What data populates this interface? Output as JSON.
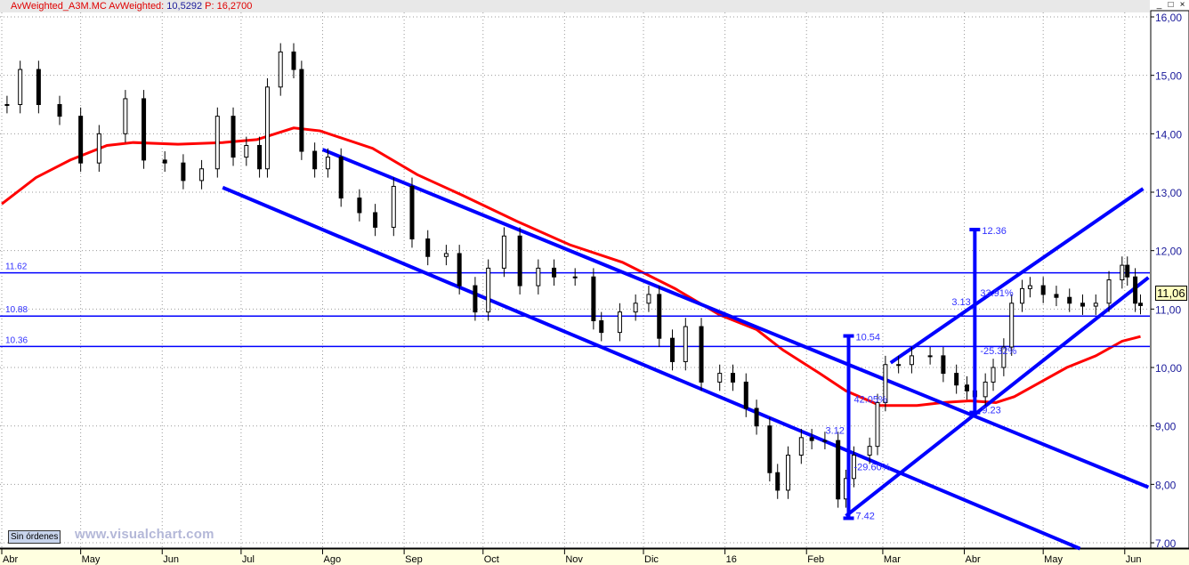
{
  "header": {
    "symbol_label": "AvWeighted_A3M.MC",
    "indicator_label": "AvWeighted:",
    "indicator_value": "10,5292",
    "price_label": "P:",
    "price_value": "16,2700"
  },
  "window_buttons": [
    "_",
    "□",
    "×"
  ],
  "orders_button": "Sin órdenes",
  "watermark": "www.visualchart.com",
  "last_price_badge": "11,06",
  "colors": {
    "price_line": "#0000ff",
    "moving_average": "#ff0000",
    "candle_up": "#ffffff",
    "candle_down": "#000000",
    "axis_strip": "#ffffe0"
  },
  "chart_data": {
    "type": "candlestick",
    "title": "",
    "ylim": [
      7,
      16
    ],
    "y_ticks": [
      "7,00",
      "8,00",
      "9,00",
      "10,00",
      "11,00",
      "12,00",
      "13,00",
      "14,00",
      "15,00",
      "16,00"
    ],
    "x_ticks": [
      {
        "label": "Abr",
        "date": "2015-04-01"
      },
      {
        "label": "May",
        "date": "2015-05-01"
      },
      {
        "label": "Jun",
        "date": "2015-06-01"
      },
      {
        "label": "Jul",
        "date": "2015-07-01"
      },
      {
        "label": "Ago",
        "date": "2015-08-01"
      },
      {
        "label": "Sep",
        "date": "2015-09-01"
      },
      {
        "label": "Oct",
        "date": "2015-10-01"
      },
      {
        "label": "Nov",
        "date": "2015-11-01"
      },
      {
        "label": "Dic",
        "date": "2015-12-01"
      },
      {
        "label": "16",
        "date": "2016-01-01"
      },
      {
        "label": "Feb",
        "date": "2016-02-01"
      },
      {
        "label": "Mar",
        "date": "2016-03-01"
      },
      {
        "label": "Abr",
        "date": "2016-04-01"
      },
      {
        "label": "May",
        "date": "2016-05-01"
      },
      {
        "label": "Jun",
        "date": "2016-06-01"
      }
    ],
    "grid": true,
    "price_closes": [
      [
        "2015-04-03",
        14.5
      ],
      [
        "2015-04-08",
        15.1
      ],
      [
        "2015-04-15",
        14.5
      ],
      [
        "2015-04-23",
        14.3
      ],
      [
        "2015-05-01",
        13.5
      ],
      [
        "2015-05-08",
        14.0
      ],
      [
        "2015-05-18",
        14.6
      ],
      [
        "2015-05-25",
        13.55
      ],
      [
        "2015-06-02",
        13.5
      ],
      [
        "2015-06-09",
        13.2
      ],
      [
        "2015-06-16",
        13.4
      ],
      [
        "2015-06-22",
        14.3
      ],
      [
        "2015-06-28",
        13.6
      ],
      [
        "2015-07-03",
        13.8
      ],
      [
        "2015-07-08",
        13.4
      ],
      [
        "2015-07-11",
        14.8
      ],
      [
        "2015-07-16",
        15.4
      ],
      [
        "2015-07-21",
        15.1
      ],
      [
        "2015-07-24",
        13.7
      ],
      [
        "2015-07-29",
        13.4
      ],
      [
        "2015-08-03",
        13.6
      ],
      [
        "2015-08-08",
        12.9
      ],
      [
        "2015-08-15",
        12.65
      ],
      [
        "2015-08-21",
        12.4
      ],
      [
        "2015-08-28",
        13.1
      ],
      [
        "2015-09-04",
        12.2
      ],
      [
        "2015-09-10",
        11.9
      ],
      [
        "2015-09-17",
        11.95
      ],
      [
        "2015-09-22",
        11.4
      ],
      [
        "2015-09-28",
        10.95
      ],
      [
        "2015-10-03",
        11.7
      ],
      [
        "2015-10-09",
        12.25
      ],
      [
        "2015-10-15",
        11.4
      ],
      [
        "2015-10-22",
        11.7
      ],
      [
        "2015-10-28",
        11.55
      ],
      [
        "2015-11-05",
        11.55
      ],
      [
        "2015-11-12",
        10.8
      ],
      [
        "2015-11-15",
        10.6
      ],
      [
        "2015-11-22",
        10.95
      ],
      [
        "2015-11-28",
        11.1
      ],
      [
        "2015-12-03",
        11.25
      ],
      [
        "2015-12-07",
        10.5
      ],
      [
        "2015-12-12",
        10.1
      ],
      [
        "2015-12-17",
        10.7
      ],
      [
        "2015-12-23",
        9.75
      ],
      [
        "2015-12-30",
        9.9
      ],
      [
        "2016-01-04",
        9.75
      ],
      [
        "2016-01-09",
        9.3
      ],
      [
        "2016-01-13",
        9.0
      ],
      [
        "2016-01-18",
        8.2
      ],
      [
        "2016-01-21",
        7.9
      ],
      [
        "2016-01-25",
        8.5
      ],
      [
        "2016-01-30",
        8.8
      ],
      [
        "2016-02-03",
        8.75
      ],
      [
        "2016-02-08",
        8.75
      ],
      [
        "2016-02-13",
        7.75
      ],
      [
        "2016-02-16",
        8.1
      ],
      [
        "2016-02-19",
        8.5
      ],
      [
        "2016-02-25",
        8.65
      ],
      [
        "2016-02-28",
        9.4
      ],
      [
        "2016-03-02",
        10.05
      ],
      [
        "2016-03-07",
        10.05
      ],
      [
        "2016-03-12",
        10.2
      ],
      [
        "2016-03-19",
        10.2
      ],
      [
        "2016-03-24",
        9.9
      ],
      [
        "2016-03-29",
        9.7
      ],
      [
        "2016-04-02",
        9.6
      ],
      [
        "2016-04-05",
        9.5
      ],
      [
        "2016-04-09",
        9.75
      ],
      [
        "2016-04-12",
        10.0
      ],
      [
        "2016-04-16",
        10.35
      ],
      [
        "2016-04-19",
        11.1
      ],
      [
        "2016-04-23",
        11.35
      ],
      [
        "2016-04-26",
        11.4
      ],
      [
        "2016-05-01",
        11.25
      ],
      [
        "2016-05-06",
        11.2
      ],
      [
        "2016-05-11",
        11.1
      ],
      [
        "2016-05-16",
        11.05
      ],
      [
        "2016-05-21",
        11.1
      ],
      [
        "2016-05-26",
        11.5
      ],
      [
        "2016-05-31",
        11.75
      ],
      [
        "2016-06-02",
        11.55
      ],
      [
        "2016-06-05",
        11.1
      ],
      [
        "2016-06-07",
        11.06
      ]
    ],
    "moving_average": [
      [
        "2015-04-01",
        12.8
      ],
      [
        "2015-04-14",
        13.25
      ],
      [
        "2015-04-27",
        13.55
      ],
      [
        "2015-05-11",
        13.8
      ],
      [
        "2015-05-21",
        13.85
      ],
      [
        "2015-06-07",
        13.82
      ],
      [
        "2015-06-24",
        13.85
      ],
      [
        "2015-07-07",
        13.9
      ],
      [
        "2015-07-21",
        14.1
      ],
      [
        "2015-07-31",
        14.05
      ],
      [
        "2015-08-20",
        13.75
      ],
      [
        "2015-09-06",
        13.3
      ],
      [
        "2015-09-23",
        12.95
      ],
      [
        "2015-10-14",
        12.5
      ],
      [
        "2015-11-03",
        12.1
      ],
      [
        "2015-11-23",
        11.8
      ],
      [
        "2015-12-13",
        11.35
      ],
      [
        "2015-12-30",
        10.9
      ],
      [
        "2016-01-13",
        10.65
      ],
      [
        "2016-01-23",
        10.3
      ],
      [
        "2016-02-06",
        9.9
      ],
      [
        "2016-02-16",
        9.6
      ],
      [
        "2016-02-29",
        9.35
      ],
      [
        "2016-03-14",
        9.35
      ],
      [
        "2016-03-24",
        9.4
      ],
      [
        "2016-04-03",
        9.43
      ],
      [
        "2016-04-13",
        9.4
      ],
      [
        "2016-04-20",
        9.5
      ],
      [
        "2016-04-30",
        9.75
      ],
      [
        "2016-05-10",
        10.0
      ],
      [
        "2016-05-21",
        10.2
      ],
      [
        "2016-05-31",
        10.45
      ],
      [
        "2016-06-07",
        10.53
      ]
    ],
    "trendlines": [
      {
        "from": [
          "2015-08-01",
          13.73
        ],
        "to": [
          "2016-06-10",
          7.95
        ]
      },
      {
        "from": [
          "2015-06-24",
          13.08
        ],
        "to": [
          "2016-05-15",
          6.9
        ]
      },
      {
        "from": [
          "2016-02-16",
          7.46
        ],
        "to": [
          "2016-06-10",
          11.54
        ]
      },
      {
        "from": [
          "2016-03-04",
          10.08
        ],
        "to": [
          "2016-06-08",
          13.06
        ]
      }
    ],
    "horizontal_lines": [
      {
        "value": 11.62,
        "label": "11.62"
      },
      {
        "value": 10.88,
        "label": "10.88"
      },
      {
        "value": 10.36,
        "label": "10.36"
      }
    ],
    "measurements": [
      {
        "date": "2016-02-17",
        "low": 7.42,
        "high": 10.54,
        "low_label": "7.42",
        "high_label": "10.54",
        "diff_label": "3.12",
        "up_pct": "42.05%",
        "down_pct": "-29.60%"
      },
      {
        "date": "2016-04-05",
        "low": 9.23,
        "high": 12.36,
        "low_label": "9.23",
        "high_label": "12.36",
        "diff_label": "3.13",
        "up_pct": "33.91%",
        "down_pct": "-25.32%"
      }
    ]
  }
}
